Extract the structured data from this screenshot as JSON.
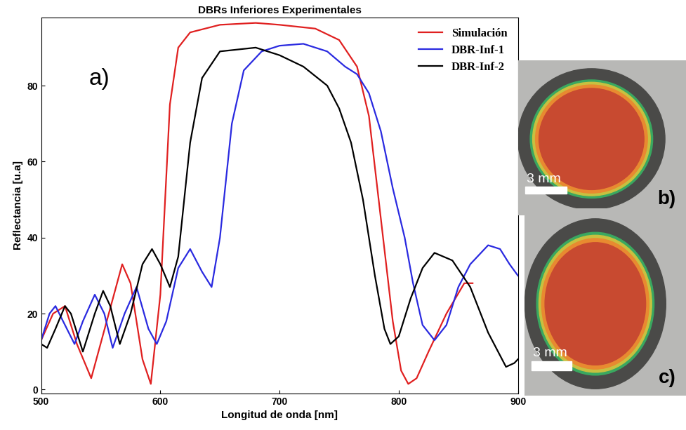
{
  "chart_data": {
    "type": "line",
    "title": "DBRs Inferiores Experimentales",
    "x_label": "Longitud de onda [nm]",
    "y_label": "Reflectancia [u.a]",
    "annotations": [
      "a)"
    ],
    "xlim": [
      500,
      900
    ],
    "xticks": [
      500,
      600,
      700,
      800,
      900
    ],
    "ylim": [
      -1,
      98
    ],
    "yticks": [
      0,
      20,
      40,
      60,
      80
    ],
    "legend": "upper right",
    "grid": false,
    "series": [
      {
        "name": "Simulación",
        "color": "#e02020",
        "x": [
          500,
          510,
          520,
          530,
          542,
          555,
          568,
          575,
          585,
          592,
          600,
          608,
          615,
          625,
          650,
          680,
          700,
          730,
          750,
          765,
          775,
          785,
          795,
          802,
          808,
          815,
          825,
          840,
          855,
          862
        ],
        "values": [
          13,
          20,
          22,
          12,
          3,
          18,
          33,
          28,
          8,
          1.5,
          25,
          75,
          90,
          94,
          96,
          96.5,
          96,
          95,
          92,
          85,
          72,
          45,
          18,
          5,
          1.5,
          3,
          10,
          20,
          28,
          28
        ]
      },
      {
        "name": "DBR-Inf-1",
        "color": "#2a2ae0",
        "x": [
          500,
          507,
          512,
          520,
          528,
          535,
          545,
          553,
          560,
          570,
          580,
          590,
          597,
          605,
          615,
          625,
          635,
          643,
          650,
          660,
          670,
          685,
          700,
          720,
          740,
          755,
          765,
          775,
          785,
          795,
          805,
          812,
          820,
          830,
          840,
          850,
          860,
          875,
          885,
          893,
          900
        ],
        "values": [
          13,
          20,
          22,
          17,
          12,
          18,
          25,
          20,
          11,
          20,
          27,
          16,
          12,
          18,
          32,
          37,
          31,
          27,
          40,
          70,
          84,
          89,
          90.5,
          91,
          89,
          85,
          83,
          78,
          68,
          53,
          40,
          28,
          17,
          13,
          17,
          27,
          33,
          38,
          37,
          33,
          30
        ]
      },
      {
        "name": "DBR-Inf-2",
        "color": "#000000",
        "x": [
          500,
          505,
          512,
          520,
          525,
          535,
          545,
          552,
          558,
          566,
          575,
          585,
          593,
          600,
          608,
          615,
          625,
          635,
          650,
          680,
          700,
          720,
          740,
          750,
          760,
          770,
          780,
          788,
          793,
          800,
          810,
          820,
          830,
          845,
          860,
          875,
          890,
          897,
          900
        ],
        "values": [
          12,
          11,
          16,
          22,
          20,
          10,
          20,
          26,
          22,
          12,
          20,
          33,
          37,
          33,
          27,
          35,
          65,
          82,
          89,
          90,
          88,
          85,
          80,
          74,
          65,
          50,
          30,
          16,
          12,
          14,
          24,
          32,
          36,
          34,
          27,
          15,
          6,
          7,
          8
        ]
      }
    ]
  },
  "images": [
    {
      "label": "b)",
      "scale_bar": "3 mm"
    },
    {
      "label": "c)",
      "scale_bar": "3 mm"
    }
  ]
}
